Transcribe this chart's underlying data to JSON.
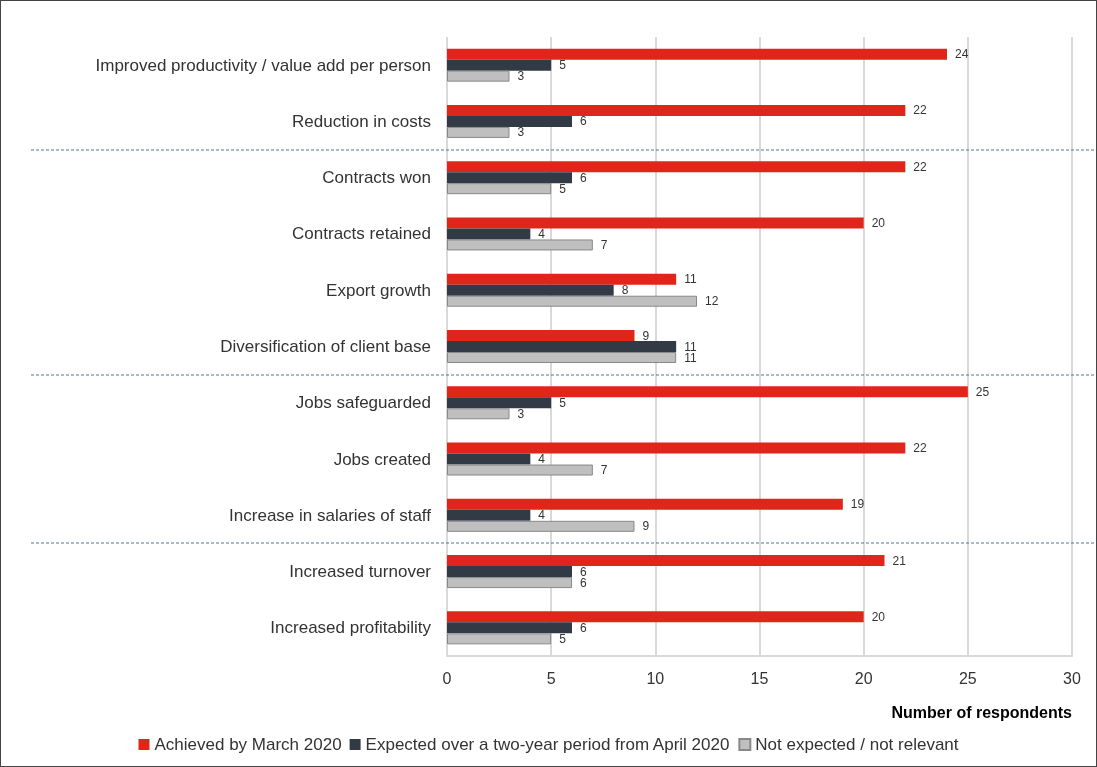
{
  "chart_data": {
    "type": "bar",
    "orientation": "horizontal",
    "categories": [
      "Improved productivity / value add per person",
      "Reduction in costs",
      "Contracts won",
      "Contracts retained",
      "Export growth",
      "Diversification of client base",
      "Jobs safeguarded",
      "Jobs created",
      "Increase in salaries of staff",
      "Increased turnover",
      "Increased profitability"
    ],
    "series": [
      {
        "name": "Achieved by March 2020",
        "color": "#e0261b",
        "values": [
          24,
          22,
          22,
          20,
          11,
          9,
          25,
          22,
          19,
          21,
          20
        ]
      },
      {
        "name": "Expected over a two-year period from April 2020",
        "color": "#323a45",
        "values": [
          5,
          6,
          6,
          4,
          8,
          11,
          5,
          4,
          4,
          6,
          6
        ]
      },
      {
        "name": "Not expected / not relevant",
        "color": "#bfbfbf",
        "values": [
          3,
          3,
          5,
          7,
          12,
          11,
          3,
          7,
          9,
          6,
          5
        ]
      }
    ],
    "xlabel": "Number of respondents",
    "xlim": [
      0,
      30
    ],
    "xticks": [
      0,
      5,
      10,
      15,
      20,
      25,
      30
    ],
    "data_labels": true,
    "grid": "x",
    "legend": "bottom"
  }
}
